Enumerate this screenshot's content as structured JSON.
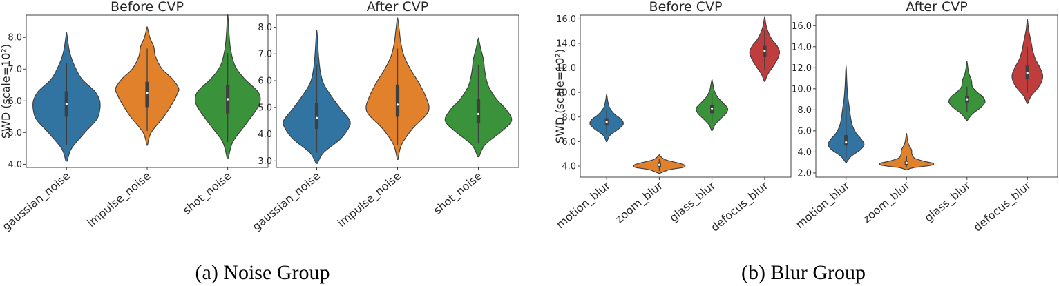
{
  "captions": {
    "noise": "(a) Noise Group",
    "blur": "(b) Blur Group"
  },
  "chart_data": [
    {
      "type": "violin",
      "group": "noise",
      "title": "Before CVP",
      "ylabel": "SWD (scale=10²)",
      "ylim": [
        3.9,
        8.7
      ],
      "yticks": [
        4.0,
        5.0,
        6.0,
        7.0,
        8.0
      ],
      "categories": [
        "gaussian_noise",
        "impulse_noise",
        "shot_noise"
      ],
      "colors": [
        "#3274a1",
        "#e1812c",
        "#3a923a"
      ],
      "series": [
        {
          "category": "gaussian_noise",
          "min": 4.1,
          "max": 8.1,
          "q1": 5.5,
          "median": 5.9,
          "q3": 6.3,
          "whisker_low": 4.6,
          "whisker_high": 7.2,
          "density": [
            [
              4.1,
              0.02
            ],
            [
              4.5,
              0.15
            ],
            [
              5.0,
              0.55
            ],
            [
              5.4,
              0.9
            ],
            [
              5.7,
              1.0
            ],
            [
              6.0,
              1.0
            ],
            [
              6.3,
              0.85
            ],
            [
              6.7,
              0.45
            ],
            [
              7.2,
              0.2
            ],
            [
              7.6,
              0.08
            ],
            [
              8.1,
              0.01
            ]
          ]
        },
        {
          "category": "impulse_noise",
          "min": 4.6,
          "max": 8.3,
          "q1": 5.8,
          "median": 6.25,
          "q3": 6.6,
          "whisker_low": 5.05,
          "whisker_high": 7.65,
          "density": [
            [
              4.6,
              0.01
            ],
            [
              5.0,
              0.12
            ],
            [
              5.5,
              0.5
            ],
            [
              5.9,
              0.75
            ],
            [
              6.2,
              0.9
            ],
            [
              6.4,
              0.95
            ],
            [
              6.7,
              0.75
            ],
            [
              7.0,
              0.45
            ],
            [
              7.4,
              0.25
            ],
            [
              7.7,
              0.2
            ],
            [
              8.0,
              0.08
            ],
            [
              8.3,
              0.01
            ]
          ]
        },
        {
          "category": "shot_noise",
          "min": 4.2,
          "max": 8.65,
          "q1": 5.6,
          "median": 6.05,
          "q3": 6.5,
          "whisker_low": 4.7,
          "whisker_high": 7.5,
          "density": [
            [
              4.2,
              0.02
            ],
            [
              4.7,
              0.15
            ],
            [
              5.2,
              0.5
            ],
            [
              5.7,
              0.85
            ],
            [
              6.0,
              0.98
            ],
            [
              6.3,
              0.9
            ],
            [
              6.7,
              0.5
            ],
            [
              7.1,
              0.22
            ],
            [
              7.6,
              0.09
            ],
            [
              8.1,
              0.04
            ],
            [
              8.65,
              0.01
            ]
          ]
        }
      ]
    },
    {
      "type": "violin",
      "group": "noise",
      "title": "After CVP",
      "ylabel": "",
      "ylim": [
        2.75,
        8.45
      ],
      "yticks": [
        3.0,
        4.0,
        5.0,
        6.0,
        7.0,
        8.0
      ],
      "categories": [
        "gaussian_noise",
        "impulse_noise",
        "shot_noise"
      ],
      "colors": [
        "#3274a1",
        "#e1812c",
        "#3a923a"
      ],
      "series": [
        {
          "category": "gaussian_noise",
          "min": 2.9,
          "max": 7.8,
          "q1": 4.2,
          "median": 4.6,
          "q3": 5.15,
          "whisker_low": 3.3,
          "whisker_high": 6.6,
          "density": [
            [
              2.9,
              0.02
            ],
            [
              3.3,
              0.2
            ],
            [
              3.8,
              0.7
            ],
            [
              4.2,
              0.95
            ],
            [
              4.5,
              1.0
            ],
            [
              4.9,
              0.75
            ],
            [
              5.4,
              0.45
            ],
            [
              5.9,
              0.2
            ],
            [
              6.4,
              0.1
            ],
            [
              7.0,
              0.05
            ],
            [
              7.8,
              0.01
            ]
          ]
        },
        {
          "category": "impulse_noise",
          "min": 3.05,
          "max": 8.3,
          "q1": 4.65,
          "median": 5.1,
          "q3": 5.85,
          "whisker_low": 3.6,
          "whisker_high": 7.2,
          "density": [
            [
              3.05,
              0.01
            ],
            [
              3.6,
              0.12
            ],
            [
              4.2,
              0.45
            ],
            [
              4.7,
              0.85
            ],
            [
              5.0,
              0.95
            ],
            [
              5.4,
              0.85
            ],
            [
              5.9,
              0.65
            ],
            [
              6.4,
              0.4
            ],
            [
              6.9,
              0.2
            ],
            [
              7.4,
              0.1
            ],
            [
              7.9,
              0.05
            ],
            [
              8.3,
              0.01
            ]
          ]
        },
        {
          "category": "shot_noise",
          "min": 3.15,
          "max": 7.55,
          "q1": 4.4,
          "median": 4.75,
          "q3": 5.3,
          "whisker_low": 3.65,
          "whisker_high": 6.6,
          "density": [
            [
              3.15,
              0.02
            ],
            [
              3.6,
              0.2
            ],
            [
              4.1,
              0.7
            ],
            [
              4.5,
              1.0
            ],
            [
              4.9,
              0.85
            ],
            [
              5.3,
              0.55
            ],
            [
              5.8,
              0.3
            ],
            [
              6.3,
              0.2
            ],
            [
              6.8,
              0.15
            ],
            [
              7.2,
              0.07
            ],
            [
              7.55,
              0.01
            ]
          ]
        }
      ]
    },
    {
      "type": "violin",
      "group": "blur",
      "title": "Before CVP",
      "ylabel": "SWD (scale=10²)",
      "ylim": [
        3.1,
        16.3
      ],
      "yticks": [
        4.0,
        6.0,
        8.0,
        10.0,
        12.0,
        14.0,
        16.0
      ],
      "categories": [
        "motion_blur",
        "zoom_blur",
        "glass_blur",
        "defocus_blur"
      ],
      "colors": [
        "#3274a1",
        "#e1812c",
        "#3a923a",
        "#c03d3e"
      ],
      "series": [
        {
          "category": "motion_blur",
          "min": 6.0,
          "max": 9.8,
          "q1": 7.3,
          "median": 7.6,
          "q3": 7.9,
          "whisker_low": 6.6,
          "whisker_high": 8.6,
          "density": [
            [
              6.0,
              0.02
            ],
            [
              6.5,
              0.2
            ],
            [
              7.0,
              0.7
            ],
            [
              7.4,
              1.0
            ],
            [
              7.8,
              0.9
            ],
            [
              8.2,
              0.5
            ],
            [
              8.7,
              0.2
            ],
            [
              9.2,
              0.08
            ],
            [
              9.8,
              0.01
            ]
          ]
        },
        {
          "category": "zoom_blur",
          "min": 3.4,
          "max": 4.9,
          "q1": 3.9,
          "median": 4.1,
          "q3": 4.3,
          "whisker_low": 3.6,
          "whisker_high": 4.6,
          "density": [
            [
              3.4,
              0.02
            ],
            [
              3.7,
              0.6
            ],
            [
              3.9,
              1.45
            ],
            [
              4.1,
              1.5
            ],
            [
              4.3,
              1.0
            ],
            [
              4.5,
              0.4
            ],
            [
              4.7,
              0.15
            ],
            [
              4.9,
              0.01
            ]
          ]
        },
        {
          "category": "glass_blur",
          "min": 6.9,
          "max": 11.0,
          "q1": 8.3,
          "median": 8.7,
          "q3": 9.0,
          "whisker_low": 7.5,
          "whisker_high": 9.9,
          "density": [
            [
              6.9,
              0.02
            ],
            [
              7.4,
              0.2
            ],
            [
              7.9,
              0.55
            ],
            [
              8.3,
              0.85
            ],
            [
              8.7,
              0.95
            ],
            [
              9.1,
              0.7
            ],
            [
              9.6,
              0.35
            ],
            [
              10.1,
              0.15
            ],
            [
              10.5,
              0.08
            ],
            [
              11.0,
              0.01
            ]
          ]
        },
        {
          "category": "defocus_blur",
          "min": 10.9,
          "max": 16.1,
          "q1": 12.9,
          "median": 13.4,
          "q3": 13.8,
          "whisker_low": 11.8,
          "whisker_high": 15.1,
          "density": [
            [
              10.9,
              0.02
            ],
            [
              11.5,
              0.2
            ],
            [
              12.2,
              0.55
            ],
            [
              12.8,
              0.8
            ],
            [
              13.3,
              0.9
            ],
            [
              13.8,
              0.75
            ],
            [
              14.3,
              0.45
            ],
            [
              14.8,
              0.25
            ],
            [
              15.4,
              0.1
            ],
            [
              16.1,
              0.01
            ]
          ]
        }
      ]
    },
    {
      "type": "violin",
      "group": "blur",
      "title": "After CVP",
      "ylabel": "",
      "ylim": [
        1.6,
        17.0
      ],
      "yticks": [
        2.0,
        4.0,
        6.0,
        8.0,
        10.0,
        12.0,
        14.0,
        16.0
      ],
      "categories": [
        "motion_blur",
        "zoom_blur",
        "glass_blur",
        "defocus_blur"
      ],
      "colors": [
        "#3274a1",
        "#e1812c",
        "#3a923a",
        "#c03d3e"
      ],
      "series": [
        {
          "category": "motion_blur",
          "min": 3.0,
          "max": 12.0,
          "q1": 4.6,
          "median": 4.9,
          "q3": 5.6,
          "whisker_low": 3.5,
          "whisker_high": 8.5,
          "density": [
            [
              3.0,
              0.02
            ],
            [
              3.6,
              0.3
            ],
            [
              4.2,
              0.8
            ],
            [
              4.7,
              1.0
            ],
            [
              5.2,
              0.85
            ],
            [
              5.8,
              0.55
            ],
            [
              6.5,
              0.35
            ],
            [
              7.3,
              0.25
            ],
            [
              8.2,
              0.18
            ],
            [
              9.2,
              0.1
            ],
            [
              10.4,
              0.05
            ],
            [
              12.0,
              0.01
            ]
          ]
        },
        {
          "category": "zoom_blur",
          "min": 2.3,
          "max": 5.7,
          "q1": 2.75,
          "median": 2.95,
          "q3": 3.1,
          "whisker_low": 2.5,
          "whisker_high": 3.6,
          "density": [
            [
              2.3,
              0.02
            ],
            [
              2.5,
              0.4
            ],
            [
              2.7,
              1.3
            ],
            [
              2.9,
              1.5
            ],
            [
              3.1,
              1.0
            ],
            [
              3.4,
              0.45
            ],
            [
              3.8,
              0.3
            ],
            [
              4.2,
              0.28
            ],
            [
              4.7,
              0.12
            ],
            [
              5.2,
              0.05
            ],
            [
              5.7,
              0.01
            ]
          ]
        },
        {
          "category": "glass_blur",
          "min": 7.0,
          "max": 12.5,
          "q1": 8.7,
          "median": 9.0,
          "q3": 9.3,
          "whisker_low": 7.8,
          "whisker_high": 10.2,
          "density": [
            [
              7.0,
              0.02
            ],
            [
              7.6,
              0.3
            ],
            [
              8.2,
              0.75
            ],
            [
              8.7,
              1.0
            ],
            [
              9.2,
              0.9
            ],
            [
              9.7,
              0.55
            ],
            [
              10.2,
              0.3
            ],
            [
              10.8,
              0.25
            ],
            [
              11.5,
              0.1
            ],
            [
              12.5,
              0.01
            ]
          ]
        },
        {
          "category": "defocus_blur",
          "min": 8.6,
          "max": 16.5,
          "q1": 10.9,
          "median": 11.5,
          "q3": 12.2,
          "whisker_low": 9.6,
          "whisker_high": 14.0,
          "density": [
            [
              8.6,
              0.02
            ],
            [
              9.3,
              0.2
            ],
            [
              10.0,
              0.55
            ],
            [
              10.7,
              0.8
            ],
            [
              11.3,
              0.85
            ],
            [
              12.0,
              0.7
            ],
            [
              12.8,
              0.45
            ],
            [
              13.6,
              0.3
            ],
            [
              14.5,
              0.2
            ],
            [
              15.5,
              0.08
            ],
            [
              16.5,
              0.01
            ]
          ]
        }
      ]
    }
  ]
}
